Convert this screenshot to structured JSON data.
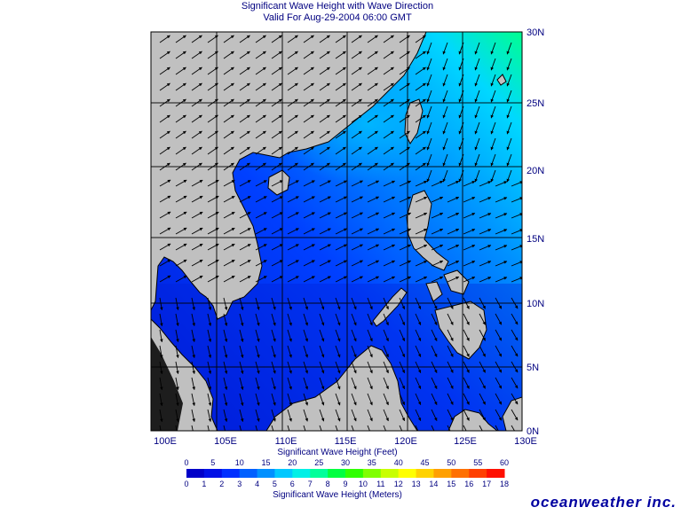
{
  "header": {
    "title": "Significant Wave Height with Wave Direction",
    "valid": "Valid For Aug-29-2004 06:00 GMT"
  },
  "map": {
    "lon_ticks": [
      "100E",
      "105E",
      "110E",
      "115E",
      "120E",
      "125E",
      "130E"
    ],
    "lat_ticks": [
      "30N",
      "25N",
      "20N",
      "15N",
      "10N",
      "5N",
      "0N"
    ]
  },
  "colorbar": {
    "feet_label": "Significant Wave Height (Feet)",
    "feet_ticks": [
      "0",
      "5",
      "10",
      "15",
      "20",
      "25",
      "30",
      "35",
      "40",
      "45",
      "50",
      "55",
      "60"
    ],
    "meters_label": "Significant Wave Height (Meters)",
    "meters_ticks": [
      "0",
      "1",
      "2",
      "3",
      "4",
      "5",
      "6",
      "7",
      "8",
      "9",
      "10",
      "11",
      "12",
      "13",
      "14",
      "15",
      "16",
      "17",
      "18"
    ],
    "colors": [
      "#0000c8",
      "#0010e6",
      "#0030ff",
      "#0060ff",
      "#0090ff",
      "#00c8ff",
      "#00f0e6",
      "#00ff9a",
      "#00ff40",
      "#30ff00",
      "#80ff00",
      "#c8ff00",
      "#ffff00",
      "#ffd200",
      "#ffa000",
      "#ff7000",
      "#ff4000",
      "#ff1000"
    ]
  },
  "brand": "oceanweather inc."
}
